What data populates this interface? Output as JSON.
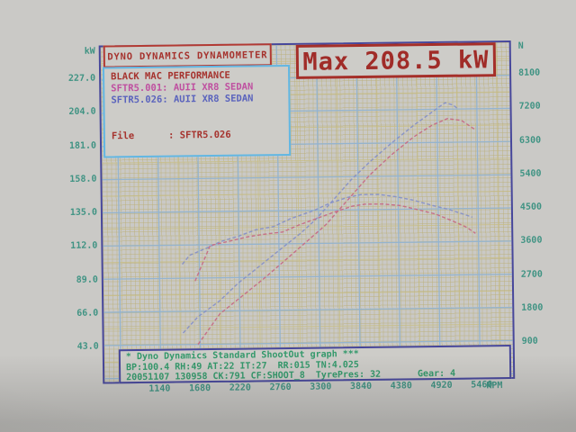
{
  "header": {
    "title": "DYNO DYNAMICS DYNAMOMETER",
    "max_label": "Max 208.5 kW"
  },
  "legend": {
    "shop": "BLACK MAC PERFORMANCE",
    "runs": [
      {
        "label": "SFTR5.001: AUII XR8 SEDAN",
        "color": "#bf4fa0"
      },
      {
        "label": "SFTR5.026: AUII XR8 SEDAN",
        "color": "#5a63bd"
      }
    ],
    "file_line": "File      : SFTR5.026"
  },
  "axes": {
    "left": {
      "unit": "kW",
      "ticks": [
        "227.0",
        "204.0",
        "181.0",
        "158.0",
        "135.0",
        "112.0",
        "89.0",
        "66.0",
        "43.0"
      ]
    },
    "right": {
      "unit": "N",
      "ticks": [
        "8100",
        "7200",
        "6300",
        "5400",
        "4500",
        "3600",
        "2700",
        "1800",
        "900"
      ]
    },
    "bottom": {
      "unit": "RPM",
      "ticks": [
        "1140",
        "1680",
        "2220",
        "2760",
        "3300",
        "3840",
        "4380",
        "4920",
        "5460"
      ]
    }
  },
  "footer": {
    "line1": "* Dyno Dynamics Standard ShootOut graph ***",
    "line2": "BP:100.4 RH:49 AT:22 IT:27  RR:015 TN:4.025",
    "line3": "20051107 130958 CK:791 CF:SHOOT_8  TyrePres: 32",
    "gear": "Gear: 4"
  },
  "colors": {
    "frame_navy": "#47479b",
    "grid_blue": "#8fb3d6",
    "grid_yellow": "#c8bd80",
    "curve_blue": "#8590c8",
    "curve_red": "#c66a85",
    "legend_border_cyan": "#62b7e3",
    "title_red": "#a6332e",
    "axis_teal": "#3f9383",
    "footer_green": "#33996b"
  },
  "chart_data": {
    "type": "line",
    "title": "Dyno Dynamics Standard ShootOut graph",
    "xlabel": "RPM",
    "ylabel_left": "kW",
    "ylabel_right": "N",
    "x_ticks": [
      1140,
      1680,
      2220,
      2760,
      3300,
      3840,
      4380,
      4920,
      5460
    ],
    "y_ticks_left": [
      227,
      204,
      181,
      158,
      135,
      112,
      89,
      66,
      43
    ],
    "y_ticks_right": [
      8100,
      7200,
      6300,
      5400,
      4500,
      3600,
      2700,
      1800,
      900
    ],
    "xlim": [
      1140,
      5460
    ],
    "ylim_left": [
      43,
      227
    ],
    "ylim_right": [
      900,
      8100
    ],
    "grid": true,
    "legend_position": "top-left",
    "max_power_kw": 208.5,
    "series": [
      {
        "name": "SFTR5.026 power (kW)",
        "axis": "left",
        "color": "#8590c8",
        "points": [
          [
            1450,
            51
          ],
          [
            1650,
            62
          ],
          [
            1950,
            73
          ],
          [
            2200,
            85
          ],
          [
            2450,
            95
          ],
          [
            2750,
            107
          ],
          [
            3050,
            119
          ],
          [
            3250,
            128
          ],
          [
            3450,
            139
          ],
          [
            3750,
            156
          ],
          [
            4000,
            168
          ],
          [
            4300,
            181
          ],
          [
            4600,
            193
          ],
          [
            4850,
            202
          ],
          [
            5030,
            208.5
          ],
          [
            5130,
            207
          ],
          [
            5210,
            204
          ]
        ]
      },
      {
        "name": "SFTR5.001 power (kW)",
        "axis": "left",
        "color": "#c66a85",
        "points": [
          [
            1650,
            43
          ],
          [
            1950,
            64
          ],
          [
            2250,
            76
          ],
          [
            2550,
            88
          ],
          [
            2850,
            101
          ],
          [
            3150,
            114
          ],
          [
            3400,
            125
          ],
          [
            3700,
            142
          ],
          [
            4000,
            159
          ],
          [
            4300,
            173
          ],
          [
            4600,
            185
          ],
          [
            4850,
            193
          ],
          [
            5060,
            197.5
          ],
          [
            5250,
            196
          ],
          [
            5420,
            190
          ]
        ]
      },
      {
        "name": "SFTR5.026 tractive effort (N)",
        "axis": "right",
        "color": "#8590c8",
        "points": [
          [
            1450,
            3080
          ],
          [
            1550,
            3320
          ],
          [
            1780,
            3510
          ],
          [
            1970,
            3680
          ],
          [
            2210,
            3820
          ],
          [
            2450,
            3990
          ],
          [
            2690,
            4070
          ],
          [
            2920,
            4280
          ],
          [
            3220,
            4480
          ],
          [
            3460,
            4690
          ],
          [
            3700,
            4840
          ],
          [
            3880,
            4910
          ],
          [
            4110,
            4910
          ],
          [
            4350,
            4840
          ],
          [
            4590,
            4740
          ],
          [
            4830,
            4600
          ],
          [
            5060,
            4480
          ],
          [
            5240,
            4360
          ],
          [
            5380,
            4260
          ]
        ]
      },
      {
        "name": "SFTR5.001 tractive effort (N)",
        "axis": "right",
        "color": "#c66a85",
        "points": [
          [
            1620,
            2620
          ],
          [
            1830,
            3580
          ],
          [
            2070,
            3680
          ],
          [
            2330,
            3800
          ],
          [
            2570,
            3870
          ],
          [
            2810,
            3920
          ],
          [
            3040,
            4110
          ],
          [
            3280,
            4280
          ],
          [
            3520,
            4450
          ],
          [
            3760,
            4600
          ],
          [
            3930,
            4650
          ],
          [
            4170,
            4650
          ],
          [
            4410,
            4600
          ],
          [
            4650,
            4480
          ],
          [
            4880,
            4360
          ],
          [
            5120,
            4160
          ],
          [
            5300,
            3990
          ],
          [
            5420,
            3820
          ]
        ]
      }
    ]
  }
}
